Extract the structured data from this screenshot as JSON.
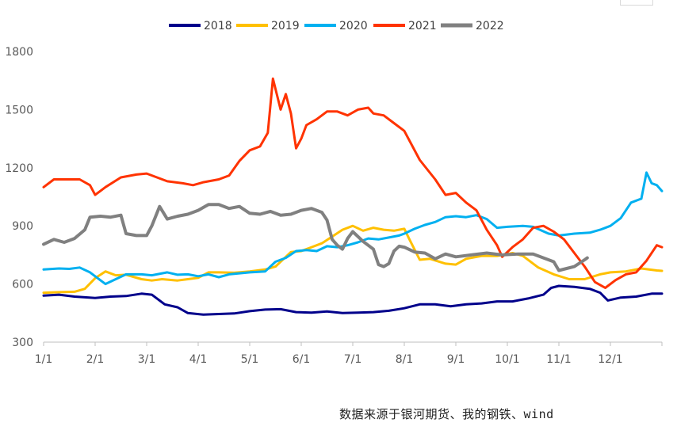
{
  "chart_data": {
    "type": "line",
    "title": "",
    "xlabel": "",
    "ylabel": "",
    "ylim": [
      300,
      1800
    ],
    "yticks": [
      300,
      600,
      900,
      1200,
      1500,
      1800
    ],
    "xticks": [
      "1/1",
      "2/1",
      "3/1",
      "4/1",
      "5/1",
      "6/1",
      "7/1",
      "8/1",
      "9/1",
      "10/1",
      "11/1",
      "12/1"
    ],
    "x_unit": "month (1 = Jan 1, 13 = Dec 31)",
    "legend_position": "top-center",
    "grid": false,
    "series": [
      {
        "name": "2018",
        "color": "#00008b",
        "points": [
          [
            1.0,
            540
          ],
          [
            1.3,
            545
          ],
          [
            1.6,
            535
          ],
          [
            2.0,
            528
          ],
          [
            2.3,
            535
          ],
          [
            2.6,
            538
          ],
          [
            2.9,
            550
          ],
          [
            3.1,
            545
          ],
          [
            3.35,
            495
          ],
          [
            3.6,
            480
          ],
          [
            3.8,
            450
          ],
          [
            4.1,
            442
          ],
          [
            4.4,
            445
          ],
          [
            4.7,
            448
          ],
          [
            5.0,
            460
          ],
          [
            5.3,
            468
          ],
          [
            5.6,
            470
          ],
          [
            5.9,
            455
          ],
          [
            6.2,
            452
          ],
          [
            6.5,
            458
          ],
          [
            6.8,
            450
          ],
          [
            7.1,
            452
          ],
          [
            7.4,
            455
          ],
          [
            7.7,
            462
          ],
          [
            8.0,
            475
          ],
          [
            8.3,
            495
          ],
          [
            8.6,
            495
          ],
          [
            8.9,
            485
          ],
          [
            9.2,
            495
          ],
          [
            9.5,
            500
          ],
          [
            9.8,
            510
          ],
          [
            10.1,
            510
          ],
          [
            10.4,
            525
          ],
          [
            10.7,
            545
          ],
          [
            10.85,
            580
          ],
          [
            11.0,
            590
          ],
          [
            11.3,
            585
          ],
          [
            11.6,
            575
          ],
          [
            11.8,
            555
          ],
          [
            11.95,
            515
          ],
          [
            12.2,
            530
          ],
          [
            12.5,
            535
          ],
          [
            12.8,
            550
          ],
          [
            13.0,
            550
          ]
        ]
      },
      {
        "name": "2019",
        "color": "#ffc000",
        "points": [
          [
            1.0,
            555
          ],
          [
            1.3,
            558
          ],
          [
            1.6,
            560
          ],
          [
            1.8,
            575
          ],
          [
            2.0,
            630
          ],
          [
            2.2,
            665
          ],
          [
            2.4,
            645
          ],
          [
            2.6,
            648
          ],
          [
            2.9,
            625
          ],
          [
            3.1,
            618
          ],
          [
            3.3,
            625
          ],
          [
            3.6,
            618
          ],
          [
            3.8,
            625
          ],
          [
            4.0,
            632
          ],
          [
            4.2,
            660
          ],
          [
            4.4,
            660
          ],
          [
            4.7,
            658
          ],
          [
            5.0,
            665
          ],
          [
            5.3,
            675
          ],
          [
            5.5,
            690
          ],
          [
            5.8,
            765
          ],
          [
            6.0,
            770
          ],
          [
            6.2,
            790
          ],
          [
            6.4,
            810
          ],
          [
            6.6,
            845
          ],
          [
            6.8,
            880
          ],
          [
            7.0,
            900
          ],
          [
            7.2,
            875
          ],
          [
            7.4,
            890
          ],
          [
            7.6,
            880
          ],
          [
            7.8,
            875
          ],
          [
            8.0,
            885
          ],
          [
            8.1,
            830
          ],
          [
            8.3,
            725
          ],
          [
            8.5,
            730
          ],
          [
            8.8,
            705
          ],
          [
            9.0,
            700
          ],
          [
            9.2,
            730
          ],
          [
            9.5,
            745
          ],
          [
            9.8,
            745
          ],
          [
            10.1,
            760
          ],
          [
            10.3,
            745
          ],
          [
            10.6,
            685
          ],
          [
            10.9,
            650
          ],
          [
            11.2,
            625
          ],
          [
            11.5,
            625
          ],
          [
            11.8,
            650
          ],
          [
            12.0,
            660
          ],
          [
            12.3,
            665
          ],
          [
            12.6,
            680
          ],
          [
            12.9,
            670
          ],
          [
            13.0,
            668
          ]
        ]
      },
      {
        "name": "2020",
        "color": "#00b0f0",
        "points": [
          [
            1.0,
            675
          ],
          [
            1.3,
            680
          ],
          [
            1.5,
            678
          ],
          [
            1.7,
            685
          ],
          [
            1.9,
            660
          ],
          [
            2.0,
            640
          ],
          [
            2.2,
            600
          ],
          [
            2.4,
            625
          ],
          [
            2.6,
            650
          ],
          [
            2.9,
            650
          ],
          [
            3.1,
            645
          ],
          [
            3.4,
            660
          ],
          [
            3.6,
            648
          ],
          [
            3.8,
            650
          ],
          [
            4.0,
            640
          ],
          [
            4.2,
            650
          ],
          [
            4.4,
            635
          ],
          [
            4.6,
            650
          ],
          [
            4.8,
            655
          ],
          [
            5.0,
            660
          ],
          [
            5.3,
            665
          ],
          [
            5.5,
            715
          ],
          [
            5.7,
            735
          ],
          [
            5.9,
            770
          ],
          [
            6.1,
            775
          ],
          [
            6.3,
            770
          ],
          [
            6.5,
            795
          ],
          [
            6.7,
            790
          ],
          [
            6.9,
            800
          ],
          [
            7.1,
            815
          ],
          [
            7.3,
            835
          ],
          [
            7.5,
            830
          ],
          [
            7.7,
            840
          ],
          [
            7.9,
            850
          ],
          [
            8.0,
            860
          ],
          [
            8.2,
            885
          ],
          [
            8.4,
            905
          ],
          [
            8.6,
            920
          ],
          [
            8.8,
            945
          ],
          [
            9.0,
            950
          ],
          [
            9.2,
            945
          ],
          [
            9.4,
            955
          ],
          [
            9.6,
            935
          ],
          [
            9.8,
            890
          ],
          [
            10.0,
            895
          ],
          [
            10.3,
            900
          ],
          [
            10.5,
            895
          ],
          [
            10.8,
            860
          ],
          [
            11.0,
            850
          ],
          [
            11.3,
            860
          ],
          [
            11.6,
            865
          ],
          [
            11.8,
            880
          ],
          [
            12.0,
            900
          ],
          [
            12.2,
            940
          ],
          [
            12.4,
            1020
          ],
          [
            12.6,
            1040
          ],
          [
            12.7,
            1175
          ],
          [
            12.8,
            1120
          ],
          [
            12.9,
            1110
          ],
          [
            13.0,
            1080
          ]
        ]
      },
      {
        "name": "2021",
        "color": "#ff3300",
        "points": [
          [
            1.0,
            1100
          ],
          [
            1.2,
            1140
          ],
          [
            1.5,
            1140
          ],
          [
            1.7,
            1140
          ],
          [
            1.9,
            1110
          ],
          [
            2.0,
            1060
          ],
          [
            2.2,
            1100
          ],
          [
            2.5,
            1150
          ],
          [
            2.8,
            1165
          ],
          [
            3.0,
            1170
          ],
          [
            3.2,
            1150
          ],
          [
            3.4,
            1130
          ],
          [
            3.7,
            1120
          ],
          [
            3.9,
            1110
          ],
          [
            4.1,
            1125
          ],
          [
            4.4,
            1140
          ],
          [
            4.6,
            1160
          ],
          [
            4.8,
            1235
          ],
          [
            5.0,
            1290
          ],
          [
            5.2,
            1310
          ],
          [
            5.35,
            1380
          ],
          [
            5.45,
            1660
          ],
          [
            5.6,
            1500
          ],
          [
            5.7,
            1580
          ],
          [
            5.8,
            1480
          ],
          [
            5.9,
            1300
          ],
          [
            6.0,
            1350
          ],
          [
            6.1,
            1420
          ],
          [
            6.3,
            1450
          ],
          [
            6.5,
            1490
          ],
          [
            6.7,
            1490
          ],
          [
            6.9,
            1470
          ],
          [
            7.1,
            1500
          ],
          [
            7.3,
            1510
          ],
          [
            7.4,
            1480
          ],
          [
            7.6,
            1470
          ],
          [
            7.8,
            1430
          ],
          [
            8.0,
            1390
          ],
          [
            8.3,
            1240
          ],
          [
            8.6,
            1140
          ],
          [
            8.8,
            1060
          ],
          [
            9.0,
            1070
          ],
          [
            9.2,
            1020
          ],
          [
            9.4,
            980
          ],
          [
            9.6,
            880
          ],
          [
            9.8,
            800
          ],
          [
            9.9,
            740
          ],
          [
            10.1,
            790
          ],
          [
            10.3,
            830
          ],
          [
            10.5,
            890
          ],
          [
            10.7,
            900
          ],
          [
            10.9,
            870
          ],
          [
            11.1,
            830
          ],
          [
            11.3,
            760
          ],
          [
            11.5,
            690
          ],
          [
            11.7,
            610
          ],
          [
            11.9,
            580
          ],
          [
            12.1,
            620
          ],
          [
            12.3,
            650
          ],
          [
            12.5,
            660
          ],
          [
            12.7,
            720
          ],
          [
            12.9,
            800
          ],
          [
            13.0,
            790
          ]
        ]
      },
      {
        "name": "2022",
        "color": "#808080",
        "points": [
          [
            1.0,
            805
          ],
          [
            1.2,
            830
          ],
          [
            1.4,
            815
          ],
          [
            1.6,
            835
          ],
          [
            1.8,
            880
          ],
          [
            1.9,
            945
          ],
          [
            2.1,
            950
          ],
          [
            2.3,
            945
          ],
          [
            2.5,
            955
          ],
          [
            2.6,
            860
          ],
          [
            2.8,
            850
          ],
          [
            3.0,
            850
          ],
          [
            3.1,
            900
          ],
          [
            3.25,
            1000
          ],
          [
            3.4,
            935
          ],
          [
            3.6,
            950
          ],
          [
            3.8,
            960
          ],
          [
            4.0,
            980
          ],
          [
            4.2,
            1010
          ],
          [
            4.4,
            1010
          ],
          [
            4.6,
            990
          ],
          [
            4.8,
            1000
          ],
          [
            5.0,
            965
          ],
          [
            5.2,
            960
          ],
          [
            5.4,
            975
          ],
          [
            5.6,
            955
          ],
          [
            5.8,
            960
          ],
          [
            6.0,
            980
          ],
          [
            6.2,
            990
          ],
          [
            6.4,
            970
          ],
          [
            6.5,
            930
          ],
          [
            6.6,
            830
          ],
          [
            6.7,
            800
          ],
          [
            6.8,
            780
          ],
          [
            6.9,
            835
          ],
          [
            7.0,
            870
          ],
          [
            7.2,
            820
          ],
          [
            7.4,
            780
          ],
          [
            7.5,
            700
          ],
          [
            7.6,
            690
          ],
          [
            7.7,
            705
          ],
          [
            7.8,
            770
          ],
          [
            7.9,
            795
          ],
          [
            8.0,
            790
          ],
          [
            8.2,
            765
          ],
          [
            8.4,
            760
          ],
          [
            8.6,
            730
          ],
          [
            8.8,
            755
          ],
          [
            9.0,
            740
          ],
          [
            9.3,
            750
          ],
          [
            9.6,
            760
          ],
          [
            9.9,
            750
          ],
          [
            10.2,
            755
          ],
          [
            10.5,
            755
          ],
          [
            10.7,
            735
          ],
          [
            10.9,
            715
          ],
          [
            11.0,
            670
          ],
          [
            11.15,
            680
          ],
          [
            11.3,
            690
          ],
          [
            11.5,
            725
          ],
          [
            11.55,
            735
          ]
        ]
      }
    ]
  },
  "source_note": "数据来源于银河期货、我的钢铁、wind"
}
